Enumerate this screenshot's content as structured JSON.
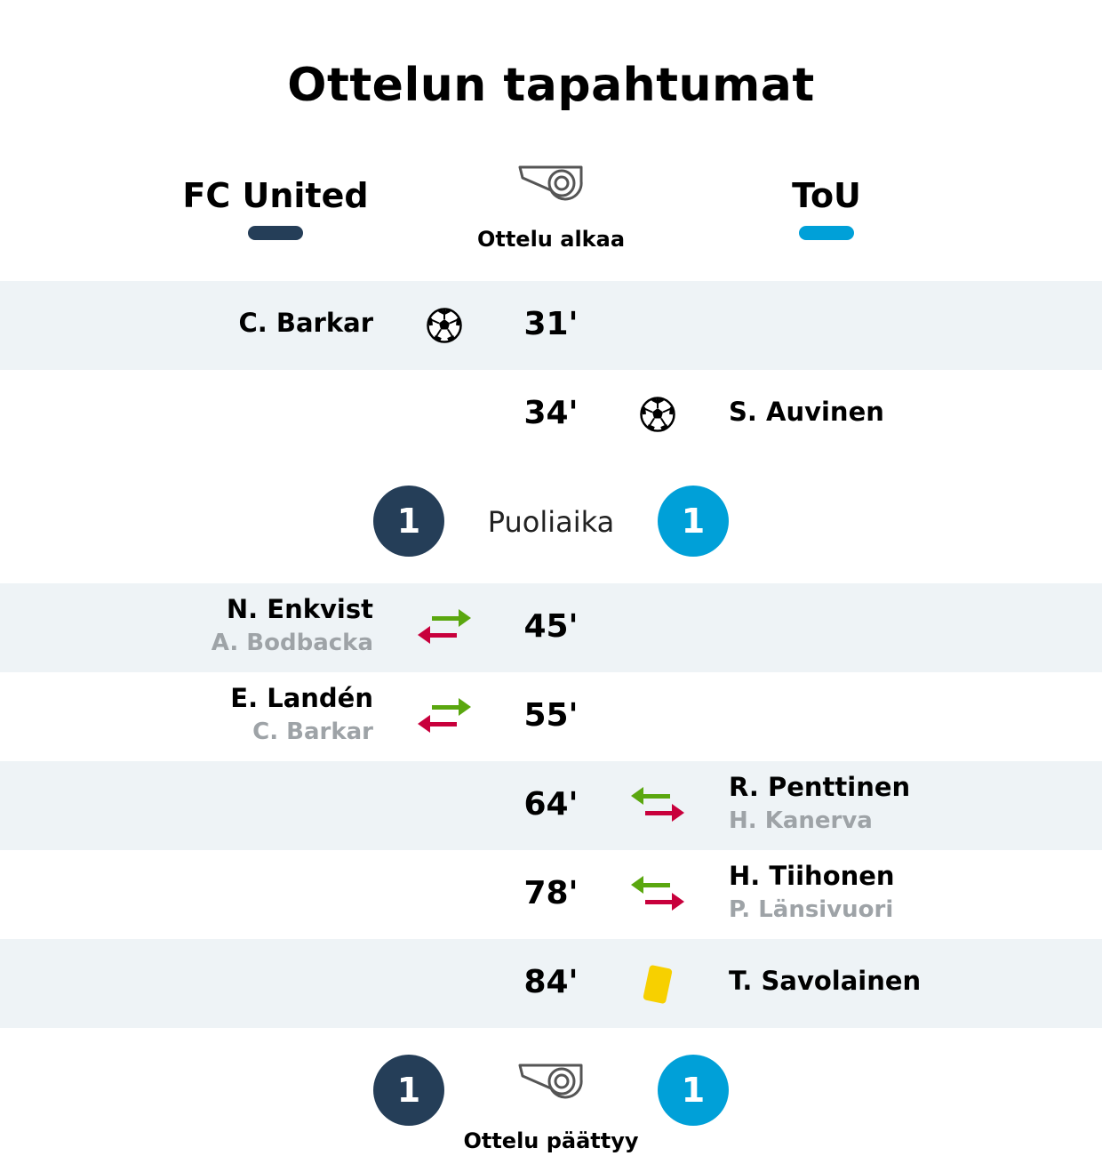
{
  "title": "Ottelun tapahtumat",
  "home_team": {
    "name": "FC United",
    "color": "#253e58"
  },
  "away_team": {
    "name": "ToU",
    "color": "#00a0d8"
  },
  "start_label": "Ottelu alkaa",
  "events": [
    {
      "minute": "31'",
      "side": "home",
      "type": "goal-icon",
      "player": "C. Barkar"
    },
    {
      "minute": "34'",
      "side": "away",
      "type": "goal-icon",
      "player": "S. Auvinen"
    },
    {
      "minute": "45'",
      "side": "home",
      "type": "substitution-icon",
      "player": "N. Enkvist",
      "player_out": "A. Bodbacka"
    },
    {
      "minute": "55'",
      "side": "home",
      "type": "substitution-icon",
      "player": "E. Landén",
      "player_out": "C. Barkar"
    },
    {
      "minute": "64'",
      "side": "away",
      "type": "substitution-icon",
      "player": "R. Penttinen",
      "player_out": "H. Kanerva"
    },
    {
      "minute": "78'",
      "side": "away",
      "type": "substitution-icon",
      "player": "H. Tiihonen",
      "player_out": "P. Länsivuori"
    },
    {
      "minute": "84'",
      "side": "away",
      "type": "yellow-card-icon",
      "player": "T. Savolainen"
    }
  ],
  "halftime": {
    "label": "Puoliaika",
    "home_score": "1",
    "away_score": "1"
  },
  "fulltime": {
    "label": "Ottelu päättyy",
    "home_score": "1",
    "away_score": "1"
  },
  "colors": {
    "row_shade": "#eef3f6",
    "sub_in": "#5aa70f",
    "sub_out": "#c8003c",
    "yellow_card": "#f7d000",
    "secondary_text": "#9ea3a7"
  }
}
